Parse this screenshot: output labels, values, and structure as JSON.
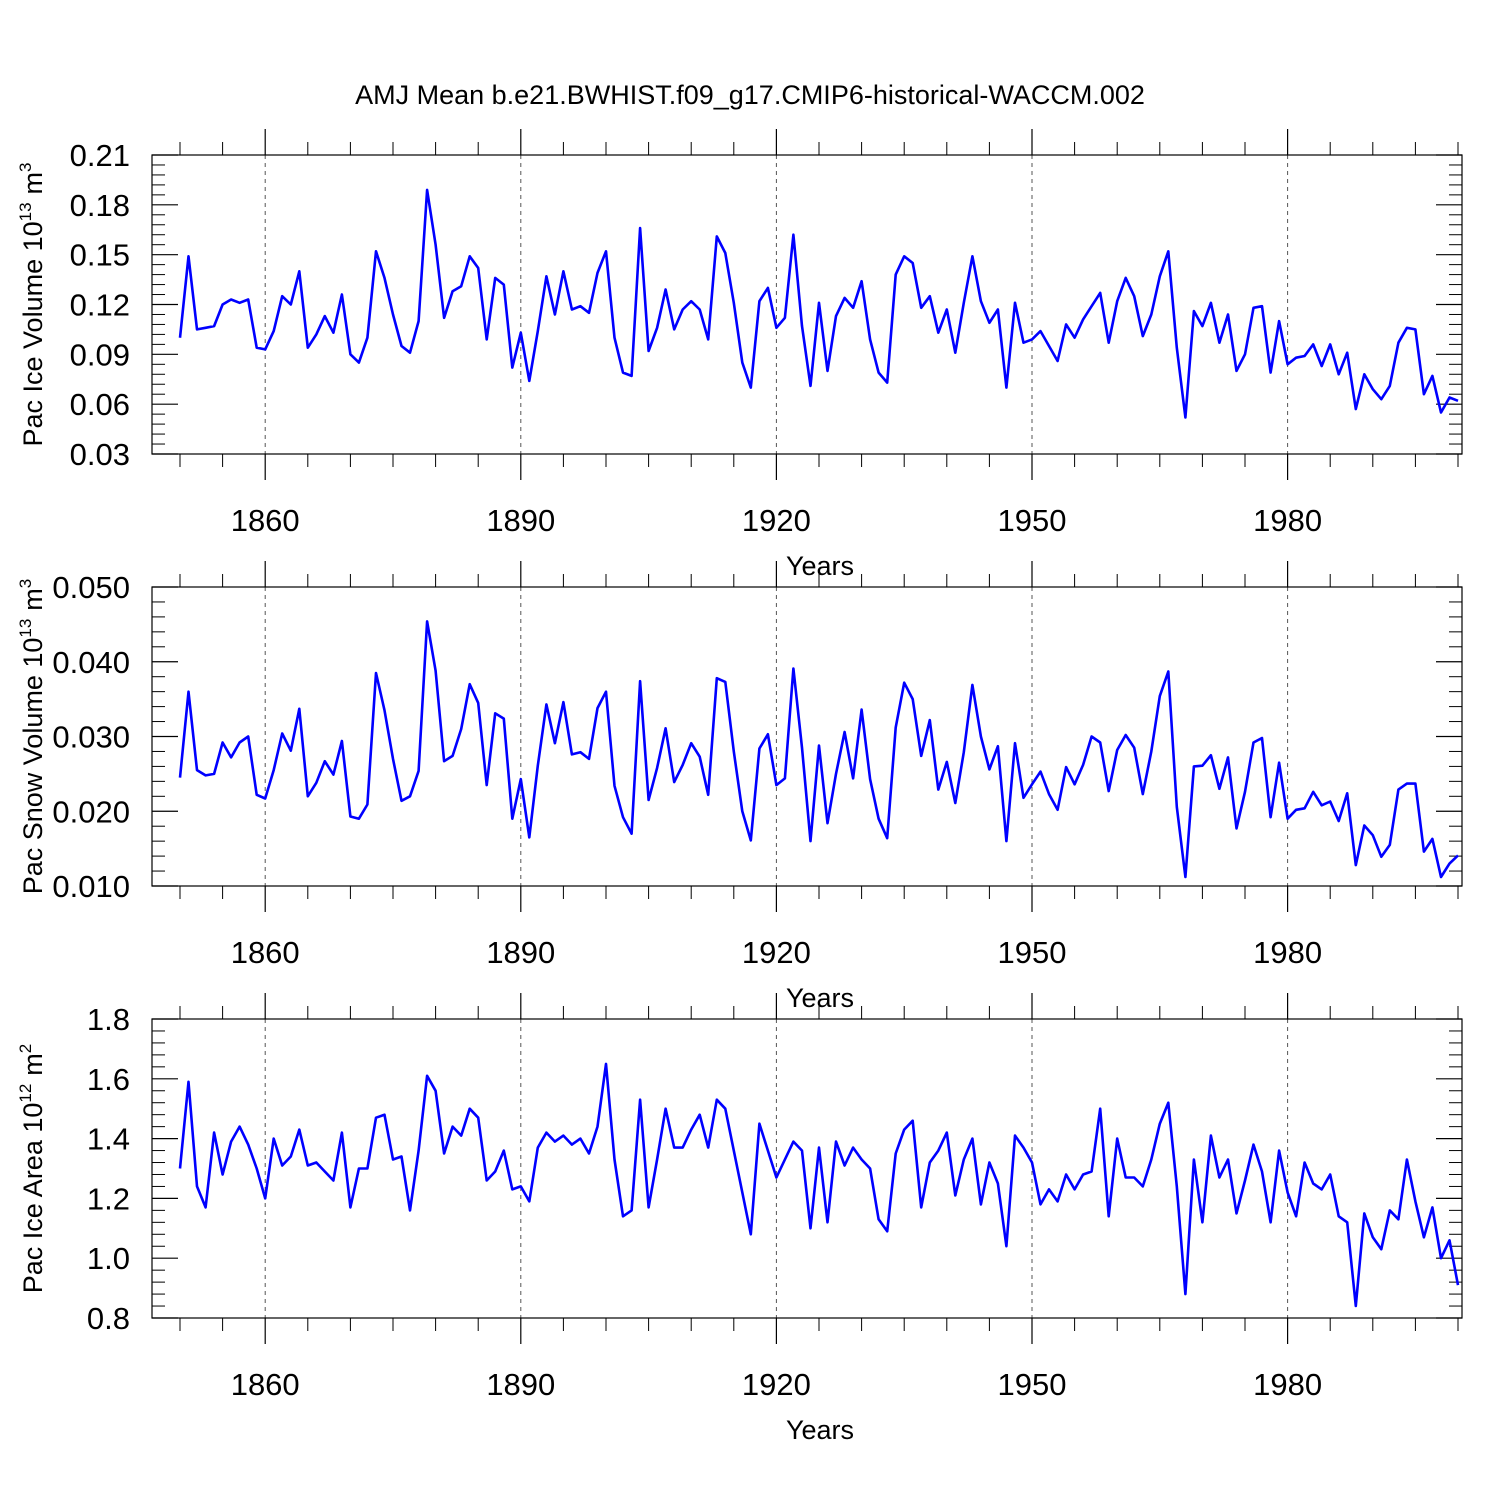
{
  "title": "AMJ Mean b.e21.BWHIST.f09_g17.CMIP6-historical-WACCM.002",
  "colors": {
    "series": "#0000ff",
    "axis": "#000000",
    "grid": "#555555",
    "background": "#ffffff"
  },
  "chart_data": [
    {
      "type": "line",
      "ylabel_main": "Pac Ice Volume 10",
      "ylabel_exp": "13",
      "ylabel_unit": "m",
      "ylabel_unit_exp": "3",
      "xlabel": "Years",
      "xlim": [
        1850,
        2000
      ],
      "ylim": [
        0.03,
        0.21
      ],
      "yticks": [
        "0.03",
        "0.06",
        "0.09",
        "0.12",
        "0.15",
        "0.18",
        "0.21"
      ],
      "xticks": [
        "1860",
        "1890",
        "1920",
        "1950",
        "1980"
      ],
      "x_grid": "dashed vertical lines at major x ticks",
      "x": [
        1850,
        1851,
        1852,
        1853,
        1854,
        1855,
        1856,
        1857,
        1858,
        1859,
        1860,
        1861,
        1862,
        1863,
        1864,
        1865,
        1866,
        1867,
        1868,
        1869,
        1870,
        1871,
        1872,
        1873,
        1874,
        1875,
        1876,
        1877,
        1878,
        1879,
        1880,
        1881,
        1882,
        1883,
        1884,
        1885,
        1886,
        1887,
        1888,
        1889,
        1890,
        1891,
        1892,
        1893,
        1894,
        1895,
        1896,
        1897,
        1898,
        1899,
        1900,
        1901,
        1902,
        1903,
        1904,
        1905,
        1906,
        1907,
        1908,
        1909,
        1910,
        1911,
        1912,
        1913,
        1914,
        1915,
        1916,
        1917,
        1918,
        1919,
        1920,
        1921,
        1922,
        1923,
        1924,
        1925,
        1926,
        1927,
        1928,
        1929,
        1930,
        1931,
        1932,
        1933,
        1934,
        1935,
        1936,
        1937,
        1938,
        1939,
        1940,
        1941,
        1942,
        1943,
        1944,
        1945,
        1946,
        1947,
        1948,
        1949,
        1950,
        1951,
        1952,
        1953,
        1954,
        1955,
        1956,
        1957,
        1958,
        1959,
        1960,
        1961,
        1962,
        1963,
        1964,
        1965,
        1966,
        1967,
        1968,
        1969,
        1970,
        1971,
        1972,
        1973,
        1974,
        1975,
        1976,
        1977,
        1978,
        1979,
        1980,
        1981,
        1982,
        1983,
        1984,
        1985,
        1986,
        1987,
        1988,
        1989,
        1990,
        1991,
        1992,
        1993,
        1994,
        1995,
        1996,
        1997,
        1998,
        1999,
        2000
      ],
      "values": [
        0.1,
        0.149,
        0.105,
        0.106,
        0.107,
        0.12,
        0.123,
        0.121,
        0.123,
        0.094,
        0.093,
        0.104,
        0.125,
        0.12,
        0.14,
        0.094,
        0.102,
        0.113,
        0.103,
        0.126,
        0.09,
        0.085,
        0.1,
        0.152,
        0.136,
        0.114,
        0.095,
        0.091,
        0.11,
        0.189,
        0.156,
        0.112,
        0.128,
        0.131,
        0.149,
        0.142,
        0.099,
        0.136,
        0.132,
        0.082,
        0.103,
        0.074,
        0.104,
        0.137,
        0.114,
        0.14,
        0.117,
        0.119,
        0.115,
        0.139,
        0.152,
        0.1,
        0.079,
        0.077,
        0.166,
        0.092,
        0.106,
        0.129,
        0.105,
        0.117,
        0.122,
        0.117,
        0.099,
        0.161,
        0.151,
        0.121,
        0.085,
        0.07,
        0.122,
        0.13,
        0.106,
        0.112,
        0.162,
        0.107,
        0.071,
        0.121,
        0.08,
        0.113,
        0.124,
        0.118,
        0.134,
        0.099,
        0.079,
        0.073,
        0.138,
        0.149,
        0.145,
        0.118,
        0.125,
        0.103,
        0.117,
        0.091,
        0.121,
        0.149,
        0.122,
        0.109,
        0.117,
        0.07,
        0.121,
        0.097,
        0.099,
        0.104,
        0.095,
        0.086,
        0.108,
        0.1,
        0.111,
        0.119,
        0.127,
        0.097,
        0.122,
        0.136,
        0.125,
        0.101,
        0.114,
        0.137,
        0.152,
        0.094,
        0.052,
        0.116,
        0.107,
        0.121,
        0.097,
        0.114,
        0.08,
        0.09,
        0.118,
        0.119,
        0.079,
        0.11,
        0.084,
        0.088,
        0.089,
        0.096,
        0.083,
        0.096,
        0.078,
        0.091,
        0.057,
        0.078,
        0.069,
        0.063,
        0.071,
        0.097,
        0.106,
        0.105,
        0.066,
        0.077,
        0.055,
        0.064,
        0.062
      ]
    },
    {
      "type": "line",
      "ylabel_main": "Pac Snow Volume 10",
      "ylabel_exp": "13",
      "ylabel_unit": "m",
      "ylabel_unit_exp": "3",
      "xlabel": "Years",
      "xlim": [
        1850,
        2000
      ],
      "ylim": [
        0.01,
        0.05
      ],
      "yticks": [
        "0.010",
        "0.020",
        "0.030",
        "0.040",
        "0.050"
      ],
      "xticks": [
        "1860",
        "1890",
        "1920",
        "1950",
        "1980"
      ],
      "x_grid": "dashed vertical lines at major x ticks",
      "x": [
        1850,
        1851,
        1852,
        1853,
        1854,
        1855,
        1856,
        1857,
        1858,
        1859,
        1860,
        1861,
        1862,
        1863,
        1864,
        1865,
        1866,
        1867,
        1868,
        1869,
        1870,
        1871,
        1872,
        1873,
        1874,
        1875,
        1876,
        1877,
        1878,
        1879,
        1880,
        1881,
        1882,
        1883,
        1884,
        1885,
        1886,
        1887,
        1888,
        1889,
        1890,
        1891,
        1892,
        1893,
        1894,
        1895,
        1896,
        1897,
        1898,
        1899,
        1900,
        1901,
        1902,
        1903,
        1904,
        1905,
        1906,
        1907,
        1908,
        1909,
        1910,
        1911,
        1912,
        1913,
        1914,
        1915,
        1916,
        1917,
        1918,
        1919,
        1920,
        1921,
        1922,
        1923,
        1924,
        1925,
        1926,
        1927,
        1928,
        1929,
        1930,
        1931,
        1932,
        1933,
        1934,
        1935,
        1936,
        1937,
        1938,
        1939,
        1940,
        1941,
        1942,
        1943,
        1944,
        1945,
        1946,
        1947,
        1948,
        1949,
        1950,
        1951,
        1952,
        1953,
        1954,
        1955,
        1956,
        1957,
        1958,
        1959,
        1960,
        1961,
        1962,
        1963,
        1964,
        1965,
        1966,
        1967,
        1968,
        1969,
        1970,
        1971,
        1972,
        1973,
        1974,
        1975,
        1976,
        1977,
        1978,
        1979,
        1980,
        1981,
        1982,
        1983,
        1984,
        1985,
        1986,
        1987,
        1988,
        1989,
        1990,
        1991,
        1992,
        1993,
        1994,
        1995,
        1996,
        1997,
        1998,
        1999,
        2000
      ],
      "values": [
        0.0245,
        0.036,
        0.0255,
        0.0248,
        0.025,
        0.0292,
        0.0272,
        0.0292,
        0.03,
        0.0222,
        0.0217,
        0.0255,
        0.0304,
        0.0281,
        0.0337,
        0.022,
        0.0238,
        0.0267,
        0.0249,
        0.0294,
        0.0193,
        0.019,
        0.0209,
        0.0385,
        0.0335,
        0.027,
        0.0214,
        0.022,
        0.0254,
        0.0454,
        0.0388,
        0.0267,
        0.0274,
        0.031,
        0.037,
        0.0345,
        0.0235,
        0.0331,
        0.0324,
        0.019,
        0.0243,
        0.0165,
        0.0261,
        0.0343,
        0.0291,
        0.0346,
        0.0276,
        0.0279,
        0.027,
        0.0338,
        0.036,
        0.0234,
        0.0192,
        0.017,
        0.0374,
        0.0215,
        0.0258,
        0.0311,
        0.0239,
        0.0262,
        0.0291,
        0.0273,
        0.0222,
        0.0378,
        0.0373,
        0.028,
        0.02,
        0.0161,
        0.0284,
        0.0303,
        0.0235,
        0.0244,
        0.0391,
        0.0285,
        0.016,
        0.0288,
        0.0184,
        0.025,
        0.0306,
        0.0244,
        0.0336,
        0.0243,
        0.019,
        0.0164,
        0.0312,
        0.0372,
        0.035,
        0.0274,
        0.0322,
        0.0229,
        0.0266,
        0.0211,
        0.0279,
        0.0369,
        0.03,
        0.0256,
        0.0287,
        0.016,
        0.0291,
        0.0218,
        0.0236,
        0.0253,
        0.0223,
        0.0202,
        0.0259,
        0.0236,
        0.0262,
        0.03,
        0.0292,
        0.0227,
        0.0282,
        0.0302,
        0.0285,
        0.0223,
        0.028,
        0.0354,
        0.0387,
        0.0206,
        0.0112,
        0.026,
        0.0261,
        0.0275,
        0.023,
        0.0272,
        0.0177,
        0.0226,
        0.0292,
        0.0298,
        0.0192,
        0.0265,
        0.019,
        0.0202,
        0.0204,
        0.0226,
        0.0208,
        0.0213,
        0.0187,
        0.0224,
        0.0128,
        0.0181,
        0.0168,
        0.0139,
        0.0155,
        0.0229,
        0.0237,
        0.0237,
        0.0146,
        0.0163,
        0.0112,
        0.013,
        0.0141
      ]
    },
    {
      "type": "line",
      "ylabel_main": "Pac Ice Area 10",
      "ylabel_exp": "12",
      "ylabel_unit": "m",
      "ylabel_unit_exp": "2",
      "xlabel": "Years",
      "xlim": [
        1850,
        2000
      ],
      "ylim": [
        0.8,
        1.8
      ],
      "yticks": [
        "0.8",
        "1.0",
        "1.2",
        "1.4",
        "1.6",
        "1.8"
      ],
      "xticks": [
        "1860",
        "1890",
        "1920",
        "1950",
        "1980"
      ],
      "x_grid": "dashed vertical lines at major x ticks",
      "x": [
        1850,
        1851,
        1852,
        1853,
        1854,
        1855,
        1856,
        1857,
        1858,
        1859,
        1860,
        1861,
        1862,
        1863,
        1864,
        1865,
        1866,
        1867,
        1868,
        1869,
        1870,
        1871,
        1872,
        1873,
        1874,
        1875,
        1876,
        1877,
        1878,
        1879,
        1880,
        1881,
        1882,
        1883,
        1884,
        1885,
        1886,
        1887,
        1888,
        1889,
        1890,
        1891,
        1892,
        1893,
        1894,
        1895,
        1896,
        1897,
        1898,
        1899,
        1900,
        1901,
        1902,
        1903,
        1904,
        1905,
        1906,
        1907,
        1908,
        1909,
        1910,
        1911,
        1912,
        1913,
        1914,
        1915,
        1916,
        1917,
        1918,
        1919,
        1920,
        1921,
        1922,
        1923,
        1924,
        1925,
        1926,
        1927,
        1928,
        1929,
        1930,
        1931,
        1932,
        1933,
        1934,
        1935,
        1936,
        1937,
        1938,
        1939,
        1940,
        1941,
        1942,
        1943,
        1944,
        1945,
        1946,
        1947,
        1948,
        1949,
        1950,
        1951,
        1952,
        1953,
        1954,
        1955,
        1956,
        1957,
        1958,
        1959,
        1960,
        1961,
        1962,
        1963,
        1964,
        1965,
        1966,
        1967,
        1968,
        1969,
        1970,
        1971,
        1972,
        1973,
        1974,
        1975,
        1976,
        1977,
        1978,
        1979,
        1980,
        1981,
        1982,
        1983,
        1984,
        1985,
        1986,
        1987,
        1988,
        1989,
        1990,
        1991,
        1992,
        1993,
        1994,
        1995,
        1996,
        1997,
        1998,
        1999,
        2000
      ],
      "values": [
        1.3,
        1.59,
        1.24,
        1.17,
        1.42,
        1.28,
        1.39,
        1.44,
        1.38,
        1.3,
        1.2,
        1.4,
        1.31,
        1.34,
        1.43,
        1.31,
        1.32,
        1.29,
        1.26,
        1.42,
        1.17,
        1.3,
        1.3,
        1.47,
        1.48,
        1.33,
        1.34,
        1.16,
        1.36,
        1.61,
        1.56,
        1.35,
        1.44,
        1.41,
        1.5,
        1.47,
        1.26,
        1.29,
        1.36,
        1.23,
        1.24,
        1.19,
        1.37,
        1.42,
        1.39,
        1.41,
        1.38,
        1.4,
        1.35,
        1.44,
        1.65,
        1.33,
        1.14,
        1.16,
        1.53,
        1.17,
        1.33,
        1.5,
        1.37,
        1.37,
        1.43,
        1.48,
        1.37,
        1.53,
        1.5,
        1.36,
        1.22,
        1.08,
        1.45,
        1.36,
        1.27,
        1.33,
        1.39,
        1.36,
        1.1,
        1.37,
        1.12,
        1.39,
        1.31,
        1.37,
        1.33,
        1.3,
        1.13,
        1.09,
        1.35,
        1.43,
        1.46,
        1.17,
        1.32,
        1.36,
        1.42,
        1.21,
        1.33,
        1.4,
        1.18,
        1.32,
        1.25,
        1.04,
        1.41,
        1.37,
        1.32,
        1.18,
        1.23,
        1.19,
        1.28,
        1.23,
        1.28,
        1.29,
        1.5,
        1.14,
        1.4,
        1.27,
        1.27,
        1.24,
        1.33,
        1.45,
        1.52,
        1.24,
        0.88,
        1.33,
        1.12,
        1.41,
        1.27,
        1.33,
        1.15,
        1.26,
        1.38,
        1.29,
        1.12,
        1.36,
        1.22,
        1.14,
        1.32,
        1.25,
        1.23,
        1.28,
        1.14,
        1.12,
        0.84,
        1.15,
        1.07,
        1.03,
        1.16,
        1.13,
        1.33,
        1.19,
        1.07,
        1.17,
        1.0,
        1.06,
        0.91
      ]
    }
  ]
}
